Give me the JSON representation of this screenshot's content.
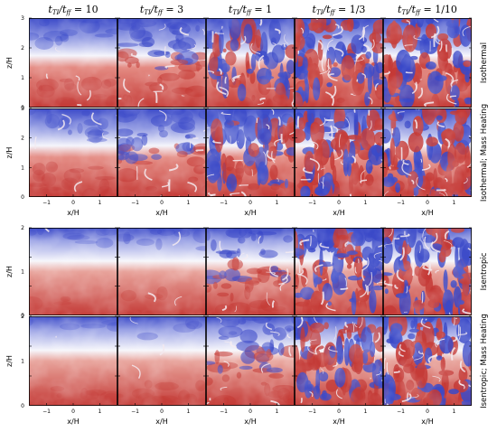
{
  "figure": {
    "columns": [
      {
        "ratio": "t_TI/t_ff = 10",
        "num_sub": "TI",
        "den_sub": "ff",
        "value": "10"
      },
      {
        "ratio": "t_TI/t_ff = 3",
        "num_sub": "TI",
        "den_sub": "ff",
        "value": "3"
      },
      {
        "ratio": "t_TI/t_ff = 1",
        "num_sub": "TI",
        "den_sub": "ff",
        "value": "1"
      },
      {
        "ratio": "t_TI/t_ff = 1/3",
        "num_sub": "TI",
        "den_sub": "ff",
        "value": "1/3"
      },
      {
        "ratio": "t_TI/t_ff = 1/10",
        "num_sub": "TI",
        "den_sub": "ff",
        "value": "1/10"
      }
    ],
    "rows": [
      {
        "label": "Isothermal",
        "mix": [
          0.2,
          0.55,
          0.85,
          0.95,
          1.0
        ]
      },
      {
        "label": "Isothermal; Mass Heating",
        "mix": [
          0.25,
          0.5,
          0.85,
          1.0,
          1.0
        ]
      },
      {
        "label": "Isentropic",
        "mix": [
          0.05,
          0.12,
          0.55,
          0.95,
          1.0
        ]
      },
      {
        "label": "Isentropic; Mass Heating",
        "mix": [
          0.05,
          0.12,
          0.55,
          0.9,
          1.0
        ]
      }
    ],
    "ylabel": "z/H",
    "xlabel": "x/H",
    "top_group_yticks": [
      "0",
      "1",
      "2",
      "3"
    ],
    "bottom_group_yticks": [
      "0",
      "1",
      "2"
    ],
    "top_group_xticks": [
      "−1",
      "0",
      "1"
    ],
    "bottom_group_xticks": [
      "−1",
      "0",
      "1"
    ],
    "colors": {
      "hot": "#c43a36",
      "cold": "#3a49c8",
      "mid": "#ffffff"
    }
  }
}
